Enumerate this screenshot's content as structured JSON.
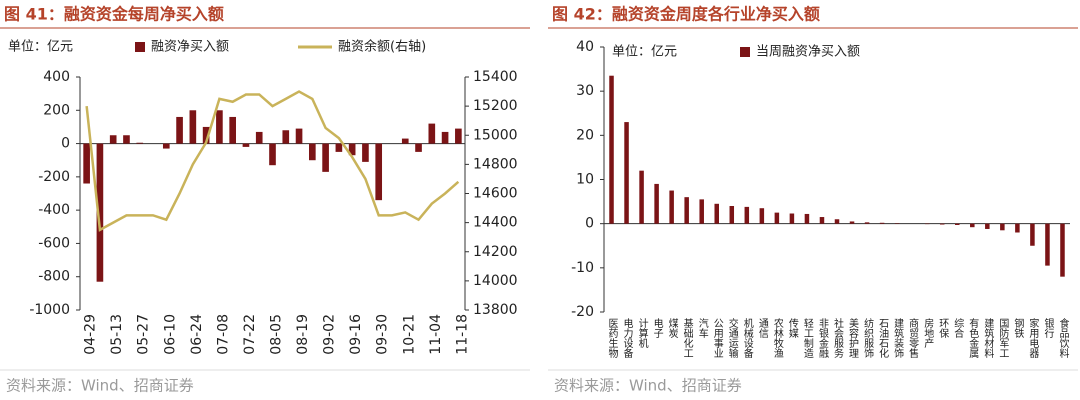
{
  "chart_data": [
    {
      "type": "combo",
      "title": "图 41：融资资金每周净买入额",
      "unit_label": "单位：亿元",
      "categories": [
        "04-29",
        null,
        "05-13",
        null,
        "05-27",
        null,
        "06-10",
        null,
        "06-24",
        null,
        "07-08",
        null,
        "07-22",
        null,
        "08-05",
        null,
        "08-19",
        null,
        "09-02",
        null,
        "09-16",
        null,
        "09-30",
        null,
        "10-21",
        null,
        "11-04",
        null,
        "11-18"
      ],
      "series": [
        {
          "name": "融资净买入额",
          "type": "bar",
          "color": "#7b1416",
          "values": [
            -240,
            -830,
            50,
            50,
            5,
            0,
            -30,
            160,
            200,
            100,
            200,
            160,
            -20,
            70,
            -130,
            80,
            90,
            -100,
            -170,
            -50,
            -70,
            -110,
            -340,
            0,
            30,
            -50,
            120,
            70,
            90
          ]
        },
        {
          "name": "融资余额(右轴)",
          "type": "line",
          "axis": "y2",
          "color": "#c9b35a",
          "values": [
            15200,
            14350,
            14400,
            14450,
            14450,
            14450,
            14420,
            14600,
            14800,
            14950,
            15250,
            15230,
            15280,
            15280,
            15200,
            15250,
            15300,
            15250,
            15050,
            14980,
            14850,
            14700,
            14450,
            14450,
            14470,
            14420,
            14530,
            14600,
            14680
          ]
        }
      ],
      "ylim": [
        -1000,
        400
      ],
      "yticks": [
        -1000,
        -800,
        -600,
        -400,
        -200,
        0,
        200,
        400
      ],
      "y2lim": [
        13800,
        15400
      ],
      "y2ticks": [
        13800,
        14000,
        14200,
        14400,
        14600,
        14800,
        15000,
        15200,
        15400
      ],
      "source": "资料来源：Wind、招商证券"
    },
    {
      "type": "bar",
      "title": "图 42：融资资金周度各行业净买入额",
      "unit_label": "单位：亿元",
      "categories": [
        "医药生物",
        "电力设备",
        "计算机",
        "电子",
        "煤炭",
        "基础化工",
        "汽车",
        "公用事业",
        "交通运输",
        "机械设备",
        "通信",
        "农林牧渔",
        "传媒",
        "轻工制造",
        "非银金融",
        "社会服务",
        "美容护理",
        "纺织服饰",
        "石油石化",
        "建筑装饰",
        "商贸零售",
        "房地产",
        "环保",
        "综合",
        "有色金属",
        "建筑材料",
        "国防军工",
        "钢铁",
        "家用电器",
        "银行",
        "食品饮料"
      ],
      "series": [
        {
          "name": "当周融资净买入额",
          "type": "bar",
          "color": "#7b1416",
          "values": [
            33.5,
            23,
            12,
            9,
            7.5,
            6,
            5.5,
            4.5,
            4,
            3.8,
            3.5,
            2.5,
            2.3,
            2.2,
            1.5,
            1,
            0.5,
            0.3,
            0.2,
            0.1,
            0,
            -0.1,
            -0.2,
            -0.3,
            -0.8,
            -1.2,
            -1.5,
            -2,
            -5,
            -9.5,
            -12
          ]
        }
      ],
      "ylim": [
        -20,
        40
      ],
      "yticks": [
        -20,
        -10,
        0,
        10,
        20,
        30,
        40
      ],
      "source": "资料来源：Wind、招商证券"
    }
  ]
}
